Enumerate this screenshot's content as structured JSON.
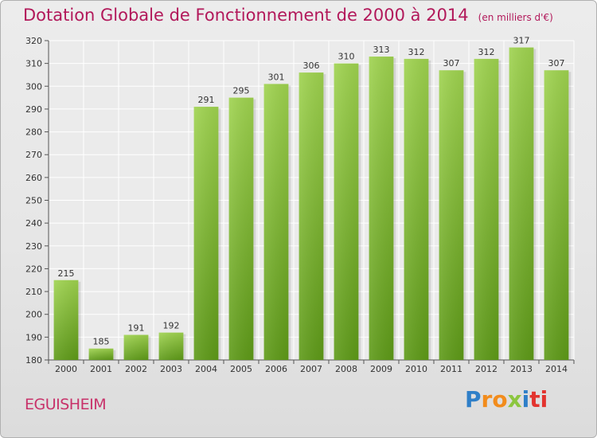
{
  "chart_data": {
    "type": "bar",
    "title": "Dotation Globale de Fonctionnement de 2000 à 2014",
    "subtitle": "(en milliers d'€)",
    "categories": [
      "2000",
      "2001",
      "2002",
      "2003",
      "2004",
      "2005",
      "2006",
      "2007",
      "2008",
      "2009",
      "2010",
      "2011",
      "2012",
      "2013",
      "2014"
    ],
    "values": [
      215,
      185,
      191,
      192,
      291,
      295,
      301,
      306,
      310,
      313,
      312,
      307,
      312,
      317,
      307
    ],
    "data_labels": [
      "215",
      "185",
      "191",
      "192",
      "291",
      "295",
      "301",
      "306",
      "310",
      "313",
      "312",
      "307",
      "312",
      "317",
      "307"
    ],
    "ylim": [
      180,
      320
    ],
    "yticks": [
      "180",
      "190",
      "200",
      "210",
      "220",
      "230",
      "240",
      "250",
      "260",
      "270",
      "280",
      "290",
      "300",
      "310",
      "320"
    ],
    "xlabel": "",
    "ylabel": "",
    "grid": true,
    "bar_color": "#7cb82f"
  },
  "commune": "EGUISHEIM",
  "logo": {
    "letters": [
      "P",
      "r",
      "o",
      "x",
      "i",
      "ti"
    ]
  }
}
